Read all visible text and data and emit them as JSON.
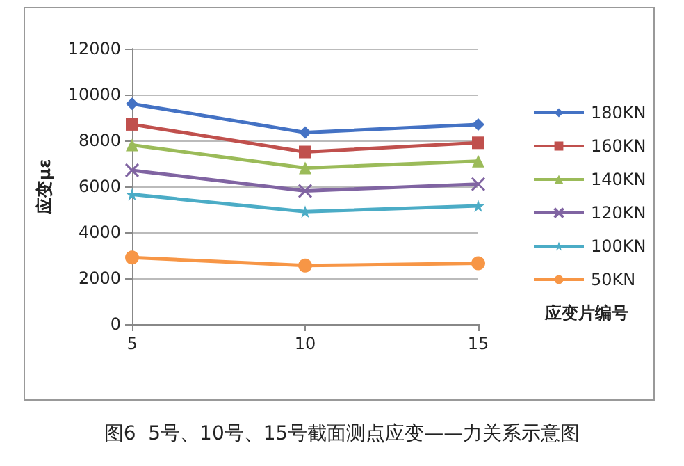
{
  "chart_data": {
    "type": "line",
    "title": "图6  5号、10号、15号截面测点应变——力关系示意图",
    "xlabel": "应变片编号",
    "ylabel": "应变με",
    "categories": [
      "5",
      "10",
      "15"
    ],
    "series": [
      {
        "name": "180KN",
        "color": "#4472c4",
        "marker": "diamond",
        "values": [
          9600,
          8350,
          8700
        ]
      },
      {
        "name": "160KN",
        "color": "#c0504d",
        "marker": "square",
        "values": [
          8700,
          7500,
          7900
        ]
      },
      {
        "name": "140KN",
        "color": "#9bbb59",
        "marker": "triangle",
        "values": [
          7800,
          6800,
          7100
        ]
      },
      {
        "name": "120KN",
        "color": "#8064a2",
        "marker": "cross",
        "values": [
          6700,
          5800,
          6100
        ]
      },
      {
        "name": "100KN",
        "color": "#4bacc6",
        "marker": "star",
        "values": [
          5650,
          4900,
          5150
        ]
      },
      {
        "name": "50KN",
        "color": "#f79646",
        "marker": "circle",
        "values": [
          2900,
          2550,
          2650
        ]
      }
    ],
    "ylim": [
      0,
      12000
    ],
    "yticks": [
      0,
      2000,
      4000,
      6000,
      8000,
      10000,
      12000
    ],
    "grid": "y",
    "legend": "right"
  }
}
